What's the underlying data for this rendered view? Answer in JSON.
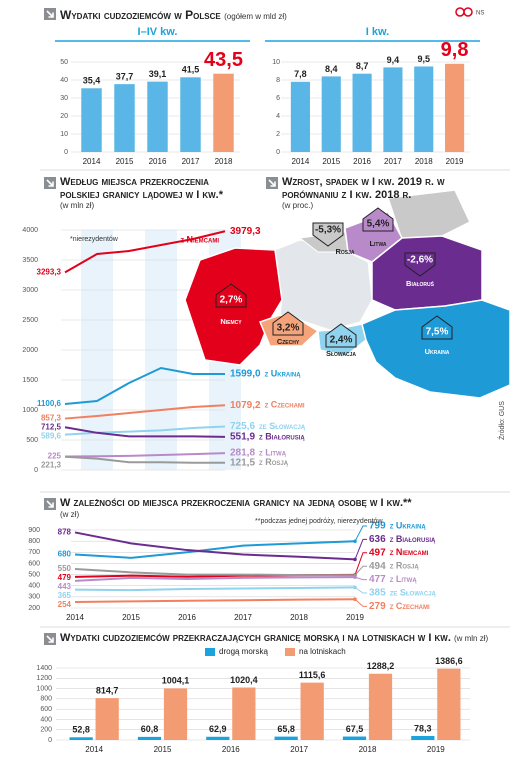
{
  "title": "Wydatki cudzoziemców w Polsce",
  "subtitle": "(ogółem w mld zł)",
  "credit": "NS",
  "source": "Źródło: GUS",
  "chart_data": [
    {
      "type": "bar",
      "title": "I–IV kw.",
      "title_color": "#1ba3dd",
      "categories": [
        "2014",
        "2015",
        "2016",
        "2017",
        "2018"
      ],
      "values": [
        35.4,
        37.7,
        39.1,
        41.5,
        43.5
      ],
      "value_labels": [
        "35,4",
        "37,7",
        "39,1",
        "41,5",
        "43,5"
      ],
      "colors": [
        "#5ab6e6",
        "#5ab6e6",
        "#5ab6e6",
        "#5ab6e6",
        "#f39b73"
      ],
      "highlight_color": "#e2001a",
      "ylim": [
        0,
        50
      ],
      "yticks": [
        0,
        10,
        20,
        30,
        40,
        50
      ],
      "grid": true
    },
    {
      "type": "bar",
      "title": "I kw.",
      "title_color": "#1ba3dd",
      "categories": [
        "2014",
        "2015",
        "2016",
        "2017",
        "2018",
        "2019"
      ],
      "values": [
        7.8,
        8.4,
        8.7,
        9.4,
        9.5,
        9.8
      ],
      "value_labels": [
        "7,8",
        "8,4",
        "8,7",
        "9,4",
        "9,5",
        "9,8"
      ],
      "colors": [
        "#5ab6e6",
        "#5ab6e6",
        "#5ab6e6",
        "#5ab6e6",
        "#5ab6e6",
        "#f39b73"
      ],
      "highlight_color": "#e2001a",
      "ylim": [
        0,
        10
      ],
      "yticks": [
        0,
        2,
        4,
        6,
        8,
        10
      ],
      "grid": true
    },
    {
      "type": "line",
      "title": "Według miejsca przekroczenia polskiej granicy lądowej w I kw.*",
      "subtitle": "(w mln zł)",
      "note": "*nierezydentów",
      "ylim": [
        0,
        4000
      ],
      "yticks": [
        0,
        500,
        1000,
        1500,
        2000,
        2500,
        3000,
        3500,
        4000
      ],
      "grid": true,
      "series": [
        {
          "name": "z Niemcami",
          "color": "#e2001a",
          "values": [
            3293.3,
            3600,
            3650,
            3750,
            3850,
            3979.3
          ],
          "value_labels": [
            "3293,3",
            null,
            null,
            null,
            null,
            "3979,3"
          ]
        },
        {
          "name": "z Ukrainą",
          "color": "#1e9ad6",
          "values": [
            1100.6,
            1150,
            1450,
            1700,
            1600,
            1599.0
          ],
          "value_labels": [
            "1100,6",
            null,
            null,
            null,
            null,
            "1599,0"
          ]
        },
        {
          "name": "z Czechami",
          "color": "#f08060",
          "values": [
            857.3,
            900,
            950,
            1000,
            1050,
            1079.2
          ],
          "value_labels": [
            "857,3",
            null,
            null,
            null,
            null,
            "1079,2"
          ]
        },
        {
          "name": "ze Słowacją",
          "color": "#8fd3ee",
          "values": [
            589.6,
            620,
            640,
            660,
            700,
            725.6
          ],
          "value_labels": [
            "589,6",
            null,
            null,
            null,
            null,
            "725,6"
          ]
        },
        {
          "name": "z Białorusią",
          "color": "#6a2c8e",
          "values": [
            712.5,
            620,
            560,
            560,
            560,
            551.9
          ],
          "value_labels": [
            "712,5",
            null,
            null,
            null,
            null,
            "551,9"
          ]
        },
        {
          "name": "z Litwą",
          "color": "#b98ac9",
          "values": [
            225,
            230,
            235,
            250,
            265,
            281.8
          ],
          "value_labels": [
            "225",
            null,
            null,
            null,
            null,
            "281,8"
          ]
        },
        {
          "name": "z Rosją",
          "color": "#9a9a9a",
          "values": [
            221.3,
            190,
            130,
            130,
            120,
            121.5
          ],
          "value_labels": [
            "221,3",
            null,
            null,
            null,
            null,
            "121,5"
          ]
        }
      ]
    },
    {
      "type": "map",
      "title": "Wzrost, spadek w I kw. 2019 r. w porównaniu z I kw. 2018 r.",
      "subtitle": "(w proc.)",
      "regions": [
        {
          "name": "Rosja",
          "value": -5.3,
          "value_label": "-5,3%",
          "color": "#c9c9c9"
        },
        {
          "name": "Litwa",
          "value": 5.4,
          "value_label": "5,4%",
          "color": "#b98ac9"
        },
        {
          "name": "Białoruś",
          "value": -2.6,
          "value_label": "-2,6%",
          "color": "#6a2c8e"
        },
        {
          "name": "Niemcy",
          "value": 2.7,
          "value_label": "2,7%",
          "color": "#e2001a"
        },
        {
          "name": "Czechy",
          "value": 3.2,
          "value_label": "3,2%",
          "color": "#f4a37a"
        },
        {
          "name": "Słowacja",
          "value": 2.4,
          "value_label": "2,4%",
          "color": "#8fd3ee"
        },
        {
          "name": "Ukraina",
          "value": 7.5,
          "value_label": "7,5%",
          "color": "#1e9ad6"
        }
      ]
    },
    {
      "type": "line",
      "title": "W zależności od miejsca przekroczenia granicy na jedną osobę w I kw.**",
      "subtitle": "(w zł)",
      "note": "**podczas jednej podróży, nierezydentów",
      "categories": [
        "2014",
        "2015",
        "2016",
        "2017",
        "2018",
        "2019"
      ],
      "ylim": [
        200,
        900
      ],
      "yticks": [
        200,
        300,
        400,
        500,
        600,
        700,
        800,
        900
      ],
      "grid": true,
      "series": [
        {
          "name": "z Ukrainą",
          "color": "#1e9ad6",
          "values": [
            680,
            650,
            700,
            760,
            780,
            799
          ]
        },
        {
          "name": "z Białorusią",
          "color": "#6a2c8e",
          "values": [
            878,
            780,
            720,
            680,
            660,
            636
          ]
        },
        {
          "name": "z Niemcami",
          "color": "#e2001a",
          "values": [
            479,
            490,
            480,
            490,
            495,
            497
          ]
        },
        {
          "name": "z Rosją",
          "color": "#9a9a9a",
          "values": [
            550,
            520,
            500,
            500,
            495,
            494
          ]
        },
        {
          "name": "z Litwą",
          "color": "#b98ac9",
          "values": [
            443,
            470,
            460,
            470,
            475,
            477
          ]
        },
        {
          "name": "ze Słowacją",
          "color": "#8fd3ee",
          "values": [
            365,
            360,
            370,
            375,
            380,
            385
          ]
        },
        {
          "name": "z Czechami",
          "color": "#f08060",
          "values": [
            254,
            260,
            265,
            270,
            275,
            279
          ]
        }
      ]
    },
    {
      "type": "bar",
      "title": "Wydatki cudzoziemców przekraczających granicę morską i na lotniskach w I kw.",
      "subtitle": "(w mln zł)",
      "categories": [
        "2014",
        "2015",
        "2016",
        "2017",
        "2018",
        "2019"
      ],
      "ylim": [
        0,
        1400
      ],
      "yticks": [
        0,
        200,
        400,
        600,
        800,
        1000,
        1200,
        1400
      ],
      "grid": true,
      "series": [
        {
          "name": "drogą morską",
          "color": "#1ba3dd",
          "values": [
            52.8,
            60.8,
            62.9,
            65.8,
            67.5,
            78.3
          ],
          "value_labels": [
            "52,8",
            "60,8",
            "62,9",
            "65,8",
            "67,5",
            "78,3"
          ]
        },
        {
          "name": "na lotniskach",
          "color": "#f39b73",
          "values": [
            814.7,
            1004.1,
            1020.4,
            1115.6,
            1288.2,
            1386.6
          ],
          "value_labels": [
            "814,7",
            "1004,1",
            "1020,4",
            "1115,6",
            "1288,2",
            "1386,6"
          ]
        }
      ]
    }
  ]
}
